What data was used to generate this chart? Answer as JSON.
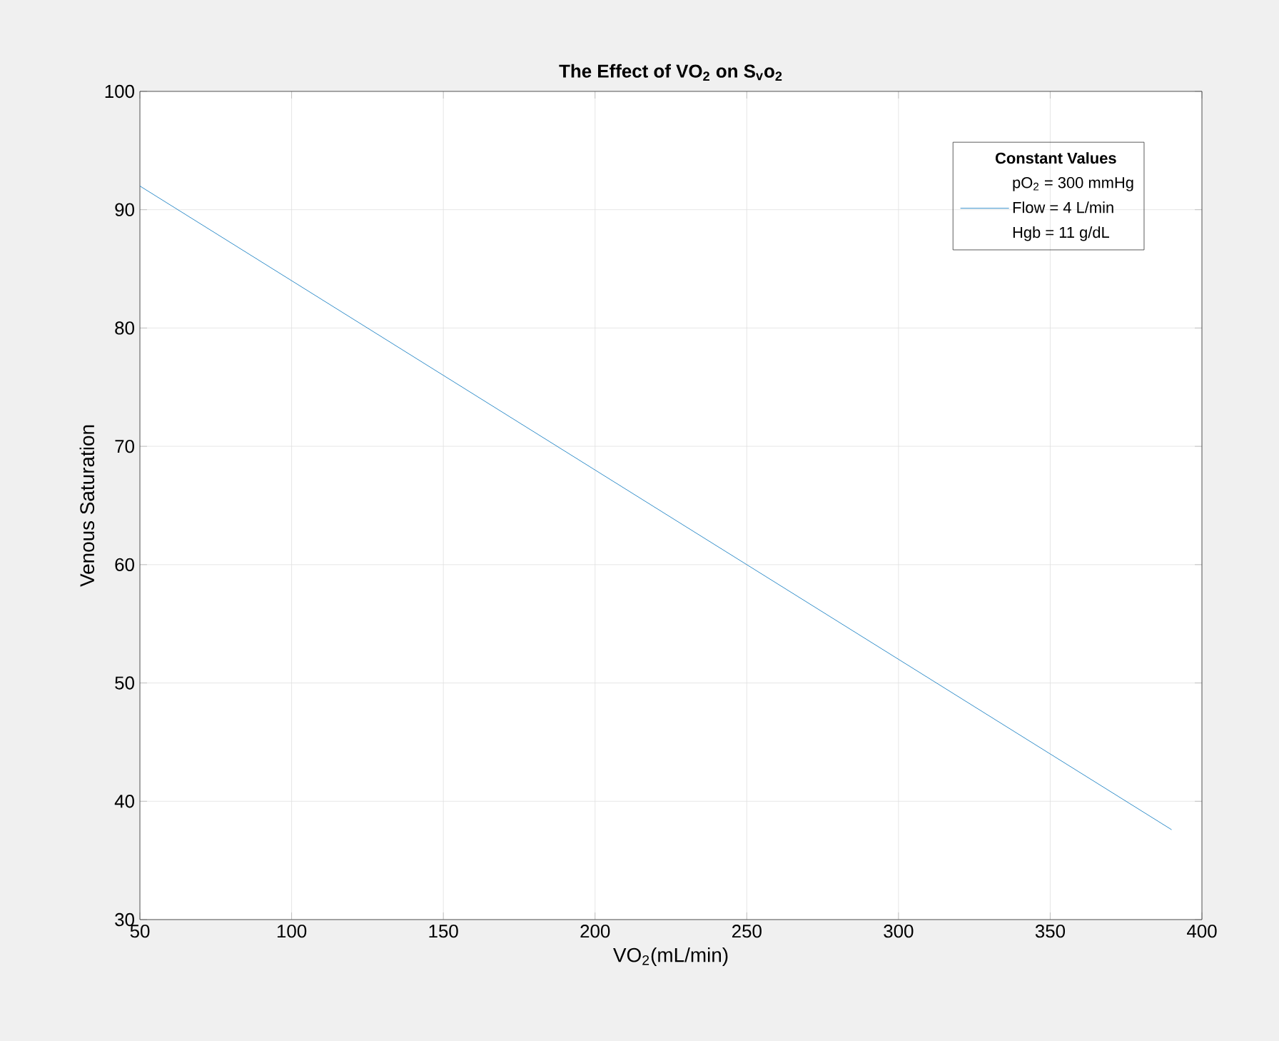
{
  "chart_data": {
    "type": "line",
    "title": "The Effect of VO$_{2}$ on S$_{v}$o$_{2}$",
    "xlabel": "VO$_{2}$(mL/min)",
    "ylabel": "Venous Saturation",
    "legend_title": "Constant Values",
    "annotations": [
      "pO$_{2}$ = 300 mmHg",
      "Hgb = 11 g/dL"
    ],
    "x": [
      50,
      100,
      150,
      200,
      250,
      300,
      350,
      390
    ],
    "series": [
      {
        "name": "Flow = 4 L/min",
        "color": "#0072bd",
        "values": [
          92,
          84,
          76,
          68,
          60,
          52,
          44,
          37.6
        ]
      }
    ],
    "xlim": [
      50,
      400
    ],
    "ylim": [
      30,
      100
    ],
    "xticks": [
      50,
      100,
      150,
      200,
      250,
      300,
      350,
      400
    ],
    "yticks": [
      30,
      40,
      50,
      60,
      70,
      80,
      90,
      100
    ],
    "grid": true,
    "legend": "top right"
  }
}
